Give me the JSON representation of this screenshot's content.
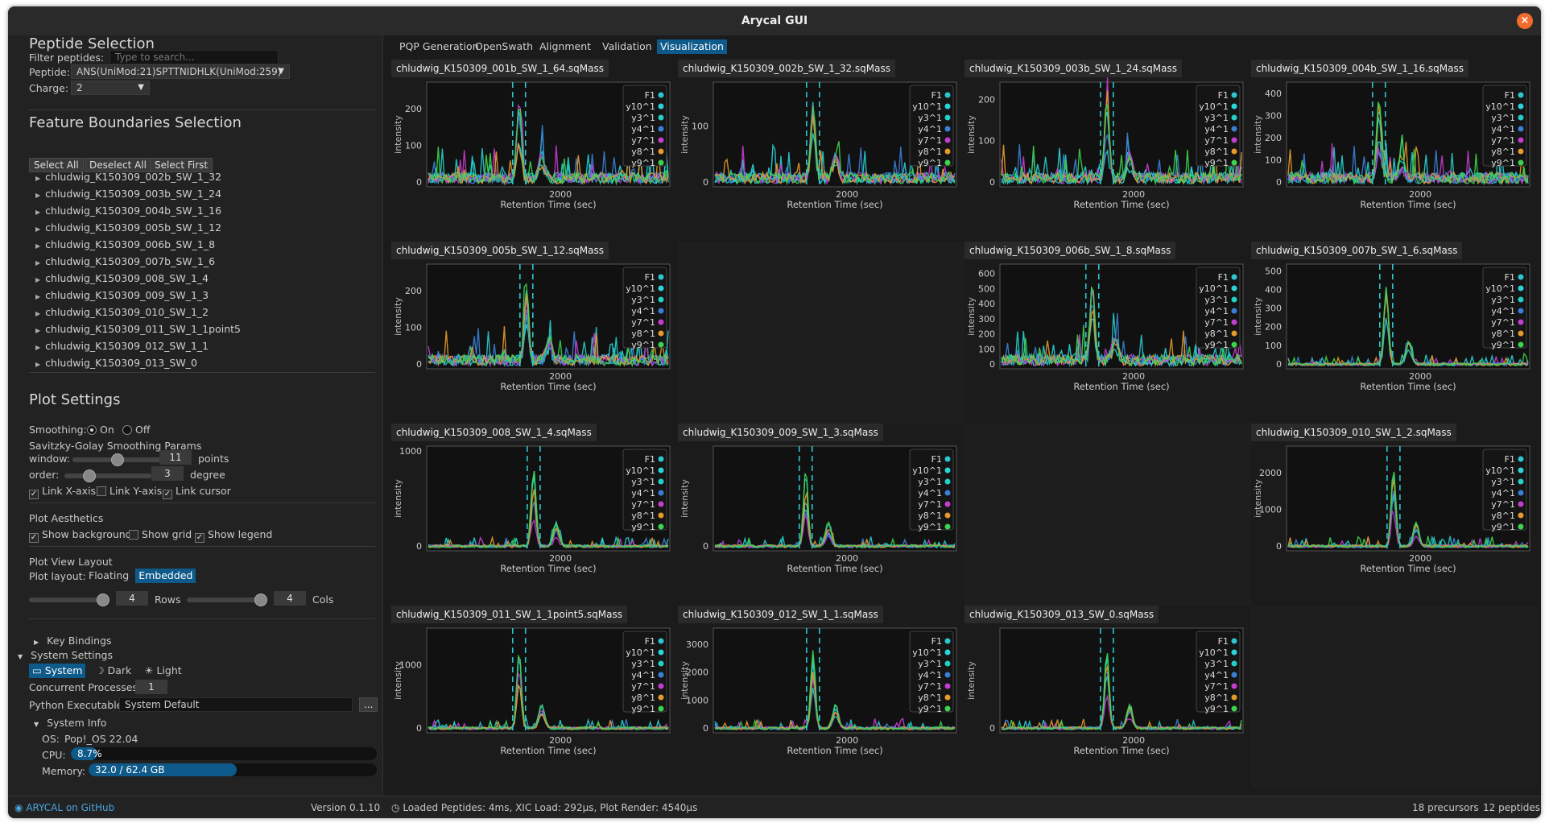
{
  "window": {
    "title": "Arycal GUI"
  },
  "peptide_selection": {
    "title": "Peptide Selection",
    "filter_label": "Filter peptides:",
    "filter_placeholder": "Type to search...",
    "peptide_label": "Peptide:",
    "peptide_value": "ANS(UniMod:21)SPTTNIDHLK(UniMod:259)",
    "charge_label": "Charge:",
    "charge_value": "2"
  },
  "feature_boundaries": {
    "title": "Feature Boundaries Selection",
    "select_all": "Select All",
    "deselect_all": "Deselect All",
    "select_first": "Select First",
    "runs": [
      "chludwig_K150309_002b_SW_1_32",
      "chludwig_K150309_003b_SW_1_24",
      "chludwig_K150309_004b_SW_1_16",
      "chludwig_K150309_005b_SW_1_12",
      "chludwig_K150309_006b_SW_1_8",
      "chludwig_K150309_007b_SW_1_6",
      "chludwig_K150309_008_SW_1_4",
      "chludwig_K150309_009_SW_1_3",
      "chludwig_K150309_010_SW_1_2",
      "chludwig_K150309_011_SW_1_1point5",
      "chludwig_K150309_012_SW_1_1",
      "chludwig_K150309_013_SW_0"
    ]
  },
  "plot_settings": {
    "title": "Plot Settings",
    "smoothing_label": "Smoothing:",
    "smoothing_on": "On",
    "smoothing_off": "Off",
    "sg_title": "Savitzky-Golay Smoothing Params",
    "window_label": "window:",
    "window_value": "11",
    "window_unit": "points",
    "window_slider_fraction": 0.5,
    "order_label": "order:",
    "order_value": "3",
    "order_unit": "degree",
    "order_slider_fraction": 0.25,
    "link_x": "Link X-axis",
    "link_y": "Link Y-axis",
    "link_cursor": "Link cursor",
    "link_x_checked": true,
    "link_y_checked": false,
    "link_cursor_checked": true,
    "aesthetics_title": "Plot Aesthetics",
    "show_background": "Show background",
    "show_grid": "Show grid",
    "show_legend": "Show legend",
    "show_background_checked": true,
    "show_grid_checked": false,
    "show_legend_checked": true,
    "layout_title": "Plot View Layout",
    "layout_label": "Plot layout:",
    "layout_floating": "Floating",
    "layout_embedded": "Embedded",
    "rows_value": "4",
    "rows_label": "Rows",
    "cols_value": "4",
    "cols_label": "Cols"
  },
  "key_bindings": {
    "label": "Key Bindings"
  },
  "system_settings": {
    "label": "System Settings",
    "theme_system": "System",
    "theme_dark": "Dark",
    "theme_light": "Light",
    "concurrent_label": "Concurrent Processes:",
    "concurrent_value": "1",
    "python_label": "Python Executable:",
    "python_value": "System Default",
    "browse_label": "...",
    "info_label": "System Info",
    "os_label": "OS:",
    "os_value": "Pop!_OS 22.04",
    "cpu_label": "CPU:",
    "cpu_value": "8.7%",
    "cpu_fraction": 0.087,
    "memory_label": "Memory:",
    "memory_value": "32.0 / 62.4 GB",
    "memory_fraction": 0.513
  },
  "footer": {
    "github": "ARYCAL on GitHub",
    "version": "Version 0.1.10"
  },
  "tabs": [
    "PQP Generation",
    "OpenSwath",
    "Alignment",
    "Validation",
    "Visualization"
  ],
  "status": {
    "loaded": "Loaded Peptides: 4ms,   XIC Load: 292µs, Plot Render: 4540µs",
    "precursors": "18 precursors",
    "peptides": "12 peptides"
  },
  "colors": {
    "accent": "#0e5a8a",
    "close": "#ef6c2c",
    "boundary": "#2cc6d0",
    "series": [
      "#2cc6d0",
      "#2ad4d8",
      "#22d0c8",
      "#3a7fd6",
      "#c43cd0",
      "#e69a2c",
      "#3cd44c"
    ]
  },
  "legend": [
    "F1",
    "y10^1",
    "y3^1",
    "y4^1",
    "y7^1",
    "y8^1",
    "y9^1"
  ],
  "axis": {
    "xlabel": "Retention Time (sec)",
    "ylabel": "intensity",
    "xtick": "2000"
  },
  "plots": [
    {
      "title": "chludwig_K150309_001b_SW_1_64.sqMass",
      "yticks": [
        "0",
        "100",
        "200"
      ],
      "ymax": 260
    },
    {
      "title": "chludwig_K150309_002b_SW_1_32.sqMass",
      "yticks": [
        "0",
        "100"
      ],
      "ymax": 170
    },
    {
      "title": "chludwig_K150309_003b_SW_1_24.sqMass",
      "yticks": [
        "0",
        "100",
        "200"
      ],
      "ymax": 230
    },
    {
      "title": "chludwig_K150309_004b_SW_1_16.sqMass",
      "yticks": [
        "0",
        "100",
        "200",
        "300",
        "400"
      ],
      "ymax": 430
    },
    {
      "title": "chludwig_K150309_005b_SW_1_12.sqMass",
      "yticks": [
        "0",
        "100",
        "200"
      ],
      "ymax": 260
    },
    null,
    {
      "title": "chludwig_K150309_006b_SW_1_8.sqMass",
      "yticks": [
        "0",
        "100",
        "200",
        "300",
        "400",
        "500",
        "600"
      ],
      "ymax": 630
    },
    {
      "title": "chludwig_K150309_007b_SW_1_6.sqMass",
      "yticks": [
        "0",
        "100",
        "200",
        "300",
        "400",
        "500"
      ],
      "ymax": 510
    },
    {
      "title": "chludwig_K150309_008_SW_1_4.sqMass",
      "yticks": [
        "0",
        "1000"
      ],
      "ymax": 1000
    },
    {
      "title": "chludwig_K150309_009_SW_1_3.sqMass",
      "yticks": [
        "0"
      ],
      "ymax": 1300
    },
    null,
    {
      "title": "chludwig_K150309_010_SW_1_2.sqMass",
      "yticks": [
        "0",
        "1000",
        "2000"
      ],
      "ymax": 2600
    },
    {
      "title": "chludwig_K150309_011_SW_1_1point5.sqMass",
      "yticks": [
        "0",
        "1000"
      ],
      "ymax": 1500
    },
    {
      "title": "chludwig_K150309_012_SW_1_1.sqMass",
      "yticks": [
        "0",
        "1000",
        "2000",
        "3000"
      ],
      "ymax": 3400
    },
    {
      "title": "chludwig_K150309_013_SW_0.sqMass",
      "yticks": [
        "0"
      ],
      "ymax": 1400
    },
    null
  ]
}
